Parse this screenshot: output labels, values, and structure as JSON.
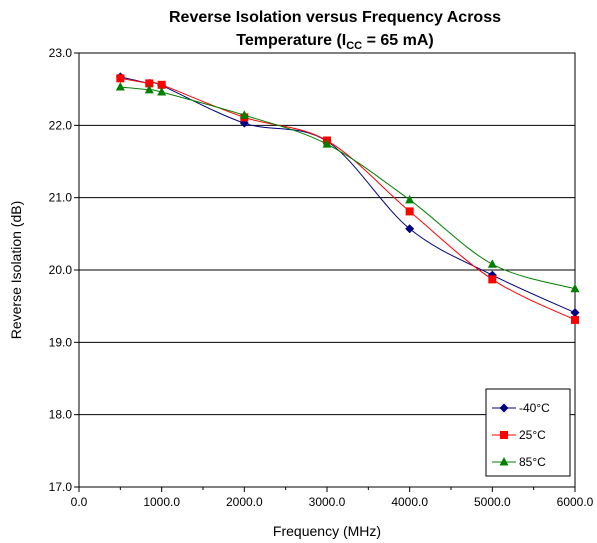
{
  "chart_data": {
    "type": "line",
    "title_line1": "Reverse Isolation versus Frequency Across",
    "title_line2_prefix": "Temperature (I",
    "title_line2_sub": "CC",
    "title_line2_suffix": " = 65 mA)",
    "xlabel": "Frequency (MHz)",
    "ylabel": "Reverse Isolation (dB)",
    "xlim": [
      0,
      6000
    ],
    "ylim": [
      17.0,
      23.0
    ],
    "x_ticks": [
      "0.0",
      "1000.0",
      "2000.0",
      "3000.0",
      "4000.0",
      "5000.0",
      "6000.0"
    ],
    "y_ticks": [
      "17.0",
      "18.0",
      "19.0",
      "20.0",
      "21.0",
      "22.0",
      "23.0"
    ],
    "grid": "horizontal",
    "legend_position": "bottom-right",
    "x": [
      500,
      850,
      1000,
      2000,
      3000,
      4000,
      5000,
      6000
    ],
    "series": [
      {
        "name": "-40°C",
        "color": "#000080",
        "marker": "diamond",
        "values": [
          22.67,
          22.58,
          22.55,
          22.03,
          21.78,
          20.57,
          19.93,
          19.41
        ]
      },
      {
        "name": "25°C",
        "color": "#ff0000",
        "marker": "square",
        "values": [
          22.65,
          22.58,
          22.56,
          22.11,
          21.79,
          20.81,
          19.87,
          19.31
        ]
      },
      {
        "name": "85°C",
        "color": "#008000",
        "marker": "triangle",
        "values": [
          22.53,
          22.49,
          22.46,
          22.14,
          21.74,
          20.97,
          20.08,
          19.74
        ]
      }
    ]
  }
}
